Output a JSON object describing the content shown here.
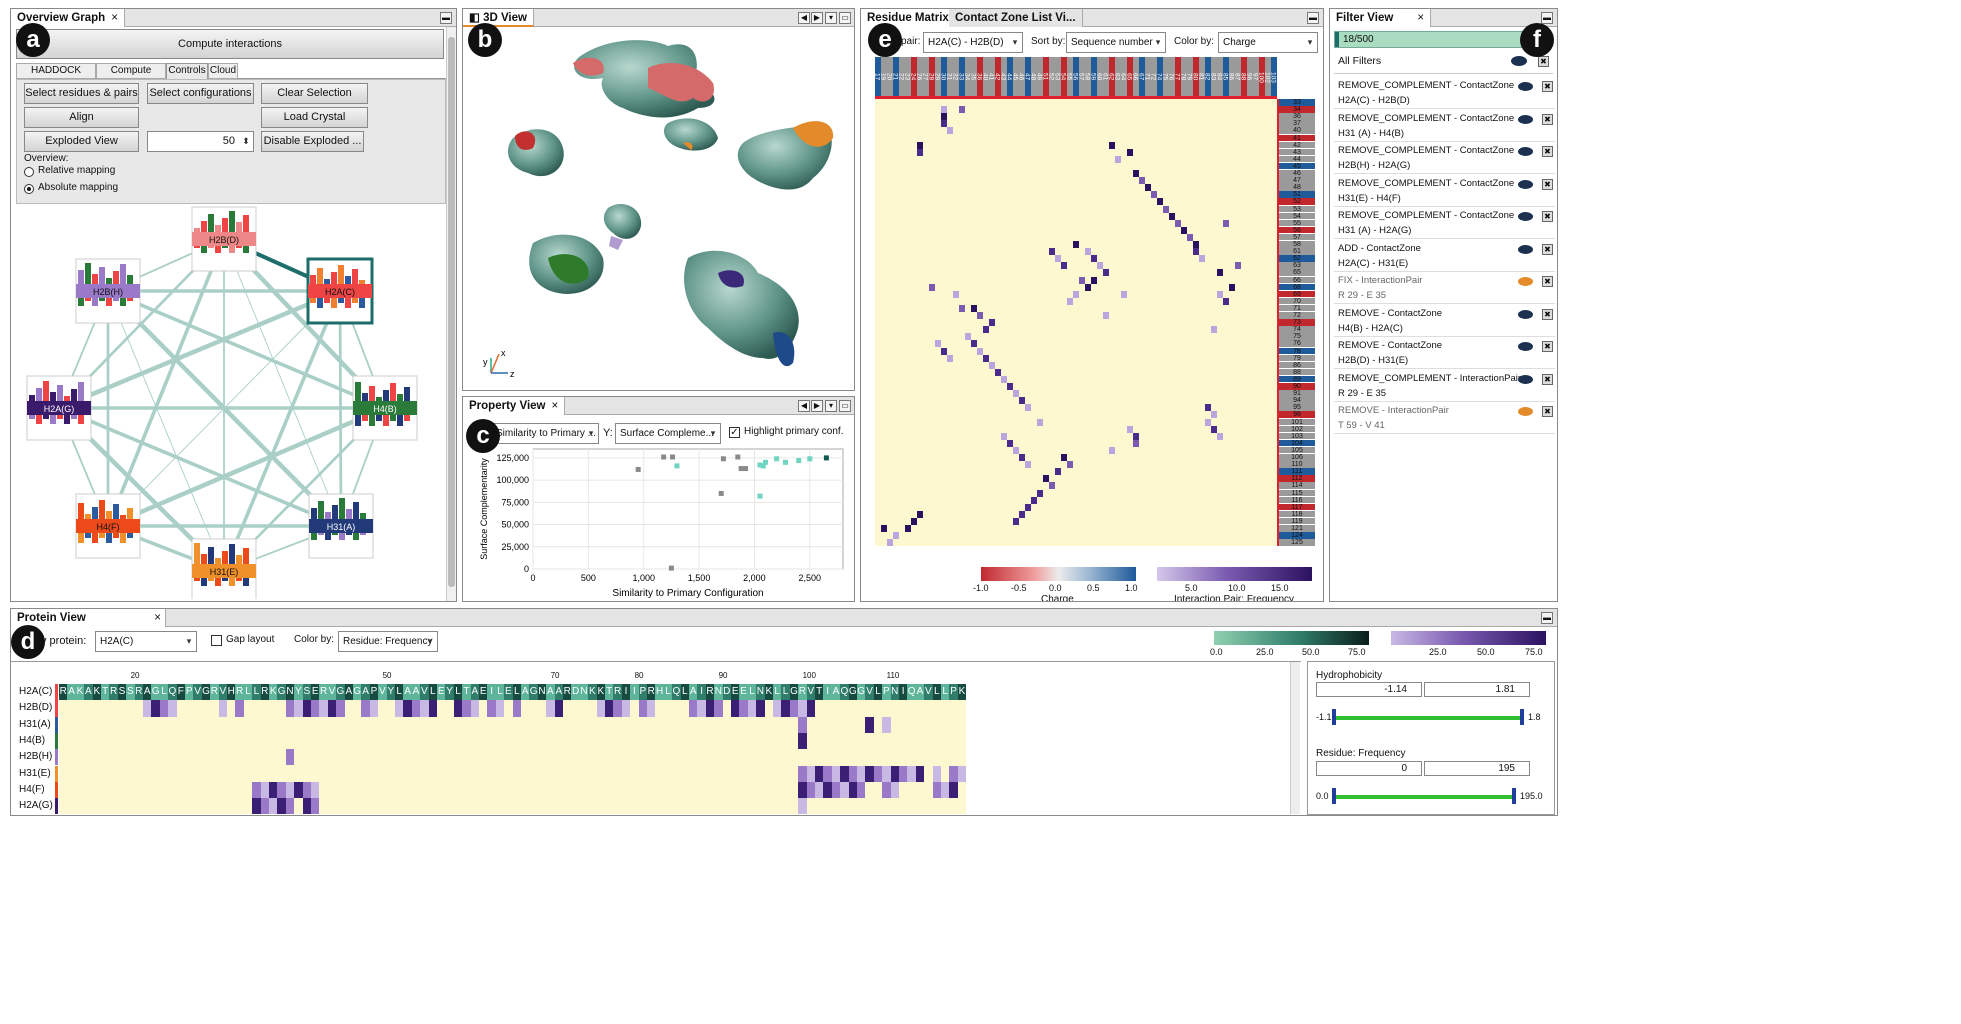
{
  "overview": {
    "tab": "Overview Graph",
    "close": "×",
    "badge": "a",
    "compute_btn": "Compute interactions",
    "tabs": [
      "HADDOCK scoring",
      "Compute scores",
      "Controls",
      "Cloud"
    ],
    "buttons": {
      "select_residues": "Select residues & pairs",
      "select_configs": "Select configurations",
      "clear_selection": "Clear Selection",
      "align": "Align",
      "load_crystal": "Load Crystal",
      "exploded_view": "Exploded View",
      "disable_exploded": "Disable Exploded ..."
    },
    "spinner_value": "50",
    "overview_label": "Overview:",
    "radio_relative": "Relative mapping",
    "radio_absolute": "Absolute mapping",
    "nodes": [
      "H2B(D)",
      "H2A(C)",
      "H2B(H)",
      "H4(B)",
      "H2A(G)",
      "H31(A)",
      "H4(F)",
      "H31(E)"
    ]
  },
  "view3d": {
    "tab": "3D View",
    "badge": "b",
    "axes": [
      "y",
      "x",
      "z"
    ]
  },
  "property": {
    "tab": "Property View",
    "badge": "c",
    "x_select": "Similarity to Primary ...",
    "y_label": "Y:",
    "y_select": "Surface Compleme...",
    "highlight": "Highlight primary conf.",
    "xlabel": "Similarity to Primary Configuration",
    "ylabel": "Surface Complementarity",
    "xticks": [
      "0",
      "500",
      "1,000",
      "1,500",
      "2,000",
      "2,500"
    ],
    "yticks": [
      "0",
      "25,000",
      "50,000",
      "75,000",
      "100,000",
      "125,000"
    ]
  },
  "residue": {
    "tabs": [
      "Residue Matrix",
      "Contact Zone List Vi..."
    ],
    "badge": "e",
    "pair_label": "pair:",
    "pair_value": "H2A(C) - H2B(D)",
    "sort_label": "Sort by:",
    "sort_value": "Sequence number",
    "color_label": "Color by:",
    "color_value": "Charge",
    "col_labels": [
      "17",
      "19",
      "20",
      "21",
      "22",
      "23",
      "24",
      "26",
      "27",
      "28",
      "29",
      "30",
      "31",
      "32",
      "33",
      "34",
      "35",
      "36",
      "40",
      "41",
      "42",
      "43",
      "44",
      "45",
      "46",
      "47",
      "48",
      "49",
      "51",
      "52",
      "53",
      "54",
      "55",
      "56",
      "57",
      "58",
      "59",
      "60",
      "61",
      "62",
      "63",
      "64",
      "65",
      "66",
      "67",
      "71",
      "72",
      "74",
      "75",
      "76",
      "77",
      "78",
      "79",
      "80",
      "81",
      "82",
      "83",
      "84",
      "85",
      "86",
      "87",
      "88",
      "96",
      "97",
      "100",
      "102",
      "103"
    ],
    "row_labels": [
      "33",
      "34",
      "36",
      "37",
      "40",
      "41",
      "42",
      "43",
      "44",
      "45",
      "46",
      "47",
      "48",
      "51",
      "52",
      "53",
      "54",
      "55",
      "56",
      "57",
      "58",
      "61",
      "62",
      "63",
      "65",
      "66",
      "68",
      "69",
      "70",
      "71",
      "72",
      "73",
      "74",
      "75",
      "76",
      "78",
      "79",
      "86",
      "88",
      "89",
      "90",
      "91",
      "94",
      "95",
      "98",
      "101",
      "102",
      "103",
      "104",
      "105",
      "106",
      "110",
      "111",
      "112",
      "114",
      "115",
      "116",
      "117",
      "118",
      "119",
      "121",
      "124",
      "125"
    ],
    "charge_legend": {
      "ticks": [
        "-1.0",
        "-0.5",
        "0.0",
        "0.5",
        "1.0"
      ],
      "title": "Charge"
    },
    "freq_legend": {
      "ticks": [
        "5.0",
        "10.0",
        "15.0"
      ],
      "title": "Interaction Pair: Frequency"
    }
  },
  "filter": {
    "tab": "Filter View",
    "badge": "f",
    "count": "18/500",
    "all": "All Filters",
    "items": [
      {
        "t1": "REMOVE_COMPLEMENT - ContactZone",
        "t2": "H2A(C) - H2B(D)",
        "active": true
      },
      {
        "t1": "REMOVE_COMPLEMENT - ContactZone",
        "t2": "H31 (A) - H4(B)",
        "active": true
      },
      {
        "t1": "REMOVE_COMPLEMENT - ContactZone",
        "t2": "H2B(H) - H2A(G)",
        "active": true
      },
      {
        "t1": "REMOVE_COMPLEMENT - ContactZone",
        "t2": "H31(E) - H4(F)",
        "active": true
      },
      {
        "t1": "REMOVE_COMPLEMENT - ContactZone",
        "t2": "H31 (A) - H2A(G)",
        "active": true
      },
      {
        "t1": "ADD - ContactZone",
        "t2": "H2A(C) - H31(E)",
        "active": true
      },
      {
        "t1": "FIX - InteractionPair",
        "t2": "R 29 - E 35",
        "active": false
      },
      {
        "t1": "REMOVE - ContactZone",
        "t2": "H4(B) - H2A(C)",
        "active": true
      },
      {
        "t1": "REMOVE - ContactZone",
        "t2": "H2B(D) - H31(E)",
        "active": true
      },
      {
        "t1": "REMOVE_COMPLEMENT - InteractionPair",
        "t2": "R 29 - E 35",
        "active": true
      },
      {
        "t1": "REMOVE - InteractionPair",
        "t2": "T 59 - V 41",
        "active": false
      }
    ]
  },
  "protein": {
    "tab": "Protein View",
    "badge": "d",
    "protein_label": "y protein:",
    "protein_value": "H2A(C)",
    "gap": "Gap layout",
    "color_label": "Color by:",
    "color_value": "Residue: Frequency",
    "legend_ticks": [
      "0.0",
      "25.0",
      "50.0",
      "75.0"
    ],
    "legend2_ticks": [
      "25.0",
      "50.0",
      "75.0"
    ],
    "row_names": [
      "H2A(C)",
      "H2B(D)",
      "H31(A)",
      "H4(B)",
      "H2B(H)",
      "H31(E)",
      "H4(F)",
      "H2A(G)"
    ],
    "sequence": "RAKAKTRSSRAGLQFPVGRVHRLLRKGNYSERVGAGAPVYLAAVLEYLTAEILELAGNAARDNKKTRIIPRHLQLAIRNDEELNKLLGRVTIAQGGVLPNIQAVLLPK",
    "seq_ticks": [
      "20",
      "50",
      "70",
      "80",
      "90",
      "100",
      "110"
    ],
    "hydro_label": "Hydrophobicity",
    "hydro_min": "-1.14",
    "hydro_max": "1.81",
    "hydro_lo": "-1.1",
    "hydro_hi": "1.8",
    "freq_label": "Residue: Frequency",
    "freq_min": "0",
    "freq_max": "195",
    "freq_lo": "0.0",
    "freq_hi": "195.0"
  },
  "colors": {
    "accent": "#1d6e6a",
    "charge_neg": "#c0282e",
    "charge_pos": "#1f5a9a",
    "interaction": "#3b1f74",
    "cream": "#fdf8cf",
    "edge": "#9bc7bb"
  }
}
